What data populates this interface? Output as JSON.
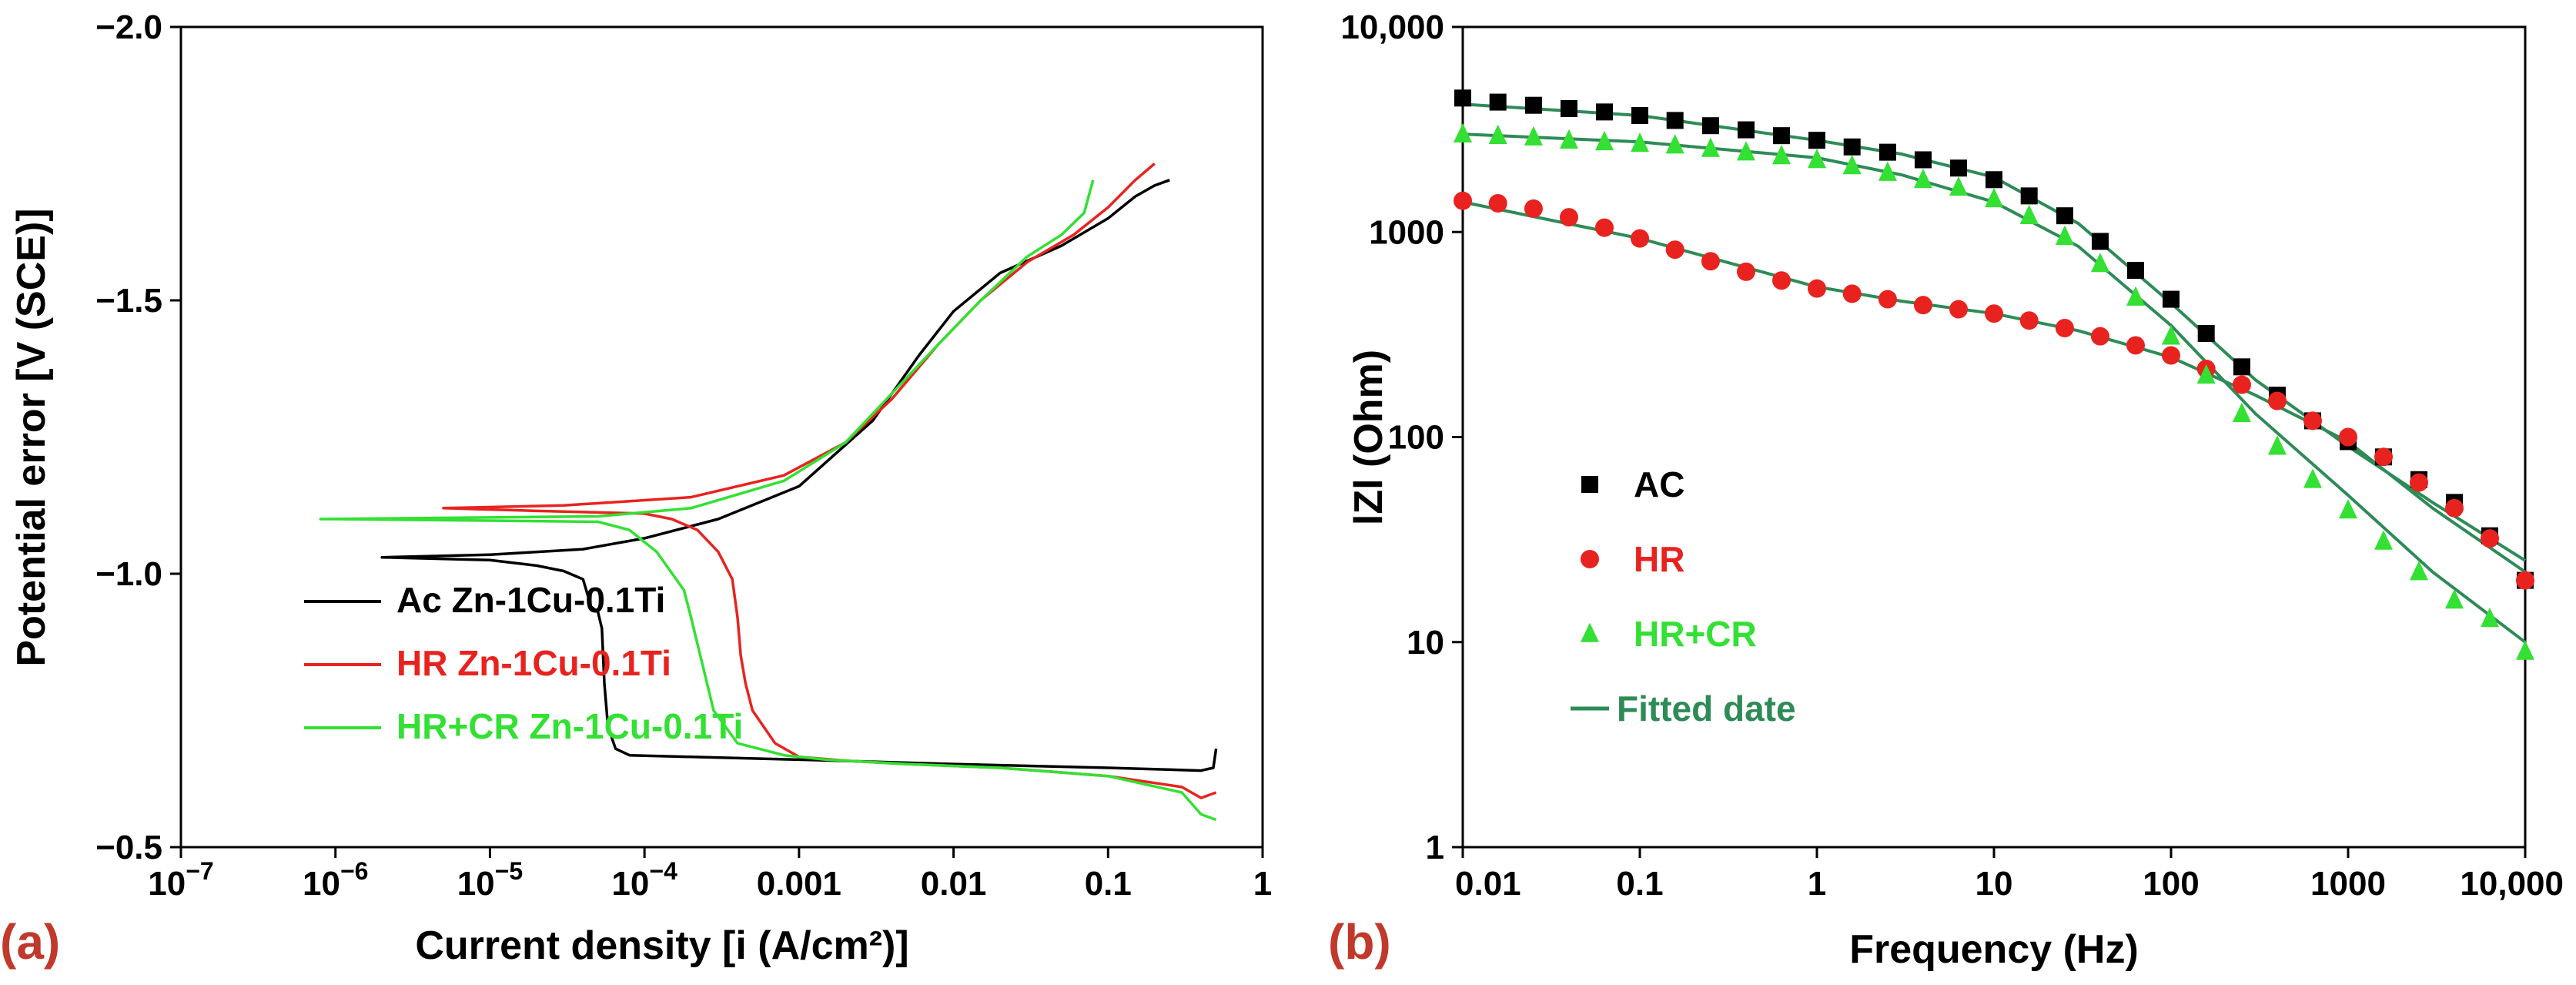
{
  "chart_data": [
    {
      "panel_label": "(a)",
      "type": "line",
      "xlabel": "Current density [i (A/cm²)]",
      "ylabel": "Potential error [V (SCE)]",
      "xscale": "log",
      "xlim": [
        1e-07,
        1
      ],
      "ylim": [
        -2.0,
        -0.5
      ],
      "xticks": [
        {
          "value": 1e-07,
          "base": "10",
          "exp": "−7"
        },
        {
          "value": 1e-06,
          "base": "10",
          "exp": "−6"
        },
        {
          "value": 1e-05,
          "base": "10",
          "exp": "−5"
        },
        {
          "value": 0.0001,
          "base": "10",
          "exp": "−4"
        },
        {
          "value": 0.001,
          "text": "0.001"
        },
        {
          "value": 0.01,
          "text": "0.01"
        },
        {
          "value": 0.1,
          "text": "0.1"
        },
        {
          "value": 1,
          "text": "1"
        }
      ],
      "yticks": [
        {
          "value": -0.5,
          "text": "−0.5"
        },
        {
          "value": -1.0,
          "text": "−1.0"
        },
        {
          "value": -1.5,
          "text": "−1.5"
        },
        {
          "value": -2.0,
          "text": "−2.0"
        }
      ],
      "grid": false,
      "legend_position": "bottom-left",
      "series": [
        {
          "name": "Ac Zn-1Cu-0.1Ti",
          "color": "#000000",
          "points": [
            [
              0.5,
              -0.68
            ],
            [
              0.48,
              -0.645
            ],
            [
              0.4,
              -0.64
            ],
            [
              0.1,
              -0.645
            ],
            [
              0.01,
              -0.652
            ],
            [
              0.001,
              -0.66
            ],
            [
              0.0002,
              -0.665
            ],
            [
              8e-05,
              -0.668
            ],
            [
              6.5e-05,
              -0.68
            ],
            [
              5.8e-05,
              -0.72
            ],
            [
              5.5e-05,
              -0.8
            ],
            [
              5.3e-05,
              -0.9
            ],
            [
              5e-05,
              -0.93
            ],
            [
              4.5e-05,
              -0.94
            ],
            [
              4.3e-05,
              -0.96
            ],
            [
              4e-05,
              -0.99
            ],
            [
              3e-05,
              -1.005
            ],
            [
              2e-05,
              -1.015
            ],
            [
              1e-05,
              -1.025
            ],
            [
              2e-06,
              -1.03
            ],
            [
              1e-05,
              -1.035
            ],
            [
              4e-05,
              -1.045
            ],
            [
              0.0001,
              -1.065
            ],
            [
              0.0003,
              -1.1
            ],
            [
              0.001,
              -1.16
            ],
            [
              0.003,
              -1.28
            ],
            [
              0.006,
              -1.4
            ],
            [
              0.01,
              -1.48
            ],
            [
              0.02,
              -1.55
            ],
            [
              0.05,
              -1.6
            ],
            [
              0.1,
              -1.65
            ],
            [
              0.15,
              -1.69
            ],
            [
              0.2,
              -1.71
            ],
            [
              0.25,
              -1.72
            ]
          ]
        },
        {
          "name": "HR Zn-1Cu-0.1Ti",
          "color": "#e8231f",
          "points": [
            [
              0.5,
              -0.6
            ],
            [
              0.4,
              -0.59
            ],
            [
              0.3,
              -0.61
            ],
            [
              0.1,
              -0.63
            ],
            [
              0.02,
              -0.645
            ],
            [
              0.005,
              -0.652
            ],
            [
              0.002,
              -0.658
            ],
            [
              0.001,
              -0.665
            ],
            [
              0.0007,
              -0.69
            ],
            [
              0.0005,
              -0.75
            ],
            [
              0.00045,
              -0.8
            ],
            [
              0.00042,
              -0.85
            ],
            [
              0.0004,
              -0.92
            ],
            [
              0.00037,
              -0.99
            ],
            [
              0.0003,
              -1.04
            ],
            [
              0.00022,
              -1.08
            ],
            [
              0.00015,
              -1.1
            ],
            [
              0.0001,
              -1.11
            ],
            [
              2e-05,
              -1.115
            ],
            [
              5e-06,
              -1.12
            ],
            [
              3e-05,
              -1.125
            ],
            [
              0.0002,
              -1.14
            ],
            [
              0.0008,
              -1.18
            ],
            [
              0.002,
              -1.24
            ],
            [
              0.004,
              -1.32
            ],
            [
              0.008,
              -1.42
            ],
            [
              0.015,
              -1.5
            ],
            [
              0.03,
              -1.57
            ],
            [
              0.06,
              -1.62
            ],
            [
              0.1,
              -1.67
            ],
            [
              0.15,
              -1.72
            ],
            [
              0.2,
              -1.75
            ]
          ]
        },
        {
          "name": "HR+CR Zn-1Cu-0.1Ti",
          "color": "#33e033",
          "points": [
            [
              0.5,
              -0.55
            ],
            [
              0.4,
              -0.56
            ],
            [
              0.3,
              -0.6
            ],
            [
              0.1,
              -0.63
            ],
            [
              0.02,
              -0.645
            ],
            [
              0.005,
              -0.652
            ],
            [
              0.0015,
              -0.66
            ],
            [
              0.0008,
              -0.668
            ],
            [
              0.0004,
              -0.69
            ],
            [
              0.00028,
              -0.75
            ],
            [
              0.00023,
              -0.85
            ],
            [
              0.0002,
              -0.92
            ],
            [
              0.00018,
              -0.97
            ],
            [
              0.00012,
              -1.04
            ],
            [
              8e-05,
              -1.08
            ],
            [
              5e-05,
              -1.095
            ],
            [
              1e-06,
              -1.1
            ],
            [
              8e-07,
              -1.1
            ],
            [
              5e-05,
              -1.105
            ],
            [
              0.0002,
              -1.12
            ],
            [
              0.0008,
              -1.17
            ],
            [
              0.002,
              -1.24
            ],
            [
              0.004,
              -1.33
            ],
            [
              0.008,
              -1.42
            ],
            [
              0.015,
              -1.5
            ],
            [
              0.03,
              -1.58
            ],
            [
              0.05,
              -1.62
            ],
            [
              0.07,
              -1.66
            ],
            [
              0.08,
              -1.72
            ]
          ]
        }
      ]
    },
    {
      "panel_label": "(b)",
      "type": "scatter",
      "xlabel": "Frequency (Hz)",
      "ylabel": "lZl (Ohm)",
      "xscale": "log",
      "yscale": "log",
      "xlim": [
        0.01,
        10000
      ],
      "ylim": [
        1,
        10000
      ],
      "xticks": [
        {
          "value": 0.01,
          "text": "0.01"
        },
        {
          "value": 0.1,
          "text": "0.1"
        },
        {
          "value": 1,
          "text": "1"
        },
        {
          "value": 10,
          "text": "10"
        },
        {
          "value": 100,
          "text": "100"
        },
        {
          "value": 1000,
          "text": "1000"
        },
        {
          "value": 10000,
          "text": "10,000"
        }
      ],
      "yticks": [
        {
          "value": 1,
          "text": "1"
        },
        {
          "value": 10,
          "text": "10"
        },
        {
          "value": 100,
          "text": "100"
        },
        {
          "value": 1000,
          "text": "1000"
        },
        {
          "value": 10000,
          "text": "10,000"
        }
      ],
      "grid": false,
      "legend_position": "left-center",
      "series": [
        {
          "name": "AC",
          "marker": "square",
          "color": "#000000",
          "x": [
            0.01,
            0.0158,
            0.0251,
            0.0398,
            0.0631,
            0.1,
            0.158,
            0.251,
            0.398,
            0.631,
            1,
            1.58,
            2.51,
            3.98,
            6.31,
            10,
            15.8,
            25.1,
            39.8,
            63.1,
            100,
            158,
            251,
            398,
            631,
            1000,
            1585,
            2512,
            3981,
            6310,
            10000
          ],
          "y": [
            4500,
            4300,
            4150,
            4000,
            3850,
            3700,
            3500,
            3300,
            3150,
            2950,
            2800,
            2600,
            2450,
            2250,
            2050,
            1800,
            1500,
            1200,
            900,
            650,
            470,
            320,
            220,
            160,
            120,
            95,
            80,
            62,
            48,
            33,
            20
          ]
        },
        {
          "name": "HR",
          "marker": "circle",
          "color": "#e8231f",
          "x": [
            0.01,
            0.0158,
            0.0251,
            0.0398,
            0.0631,
            0.1,
            0.158,
            0.251,
            0.398,
            0.631,
            1,
            1.58,
            2.51,
            3.98,
            6.31,
            10,
            15.8,
            25.1,
            39.8,
            63.1,
            100,
            158,
            251,
            398,
            631,
            1000,
            1585,
            2512,
            3981,
            6310,
            10000
          ],
          "y": [
            1420,
            1380,
            1300,
            1180,
            1050,
            930,
            820,
            720,
            640,
            580,
            530,
            500,
            470,
            440,
            420,
            400,
            370,
            340,
            310,
            280,
            250,
            215,
            180,
            150,
            120,
            100,
            80,
            60,
            45,
            32,
            20
          ]
        },
        {
          "name": "HR+CR",
          "marker": "triangle",
          "color": "#33e033",
          "x": [
            0.01,
            0.0158,
            0.0251,
            0.0398,
            0.0631,
            0.1,
            0.158,
            0.251,
            0.398,
            0.631,
            1,
            1.58,
            2.51,
            3.98,
            6.31,
            10,
            15.8,
            25.1,
            39.8,
            63.1,
            100,
            158,
            251,
            398,
            631,
            1000,
            1585,
            2512,
            3981,
            6310,
            10000
          ],
          "y": [
            3000,
            2950,
            2900,
            2800,
            2750,
            2700,
            2650,
            2550,
            2450,
            2350,
            2250,
            2100,
            1950,
            1800,
            1650,
            1450,
            1200,
            950,
            700,
            480,
            310,
            200,
            130,
            90,
            62,
            44,
            31,
            22,
            16,
            13,
            9
          ]
        },
        {
          "name": "Fitted date",
          "type": "line",
          "color": "#2e8b57",
          "fits": [
            {
              "x": [
                0.01,
                0.1,
                1,
                3,
                10,
                30,
                100,
                300,
                1000,
                3000,
                10000
              ],
              "y": [
                4200,
                3700,
                2800,
                2400,
                1850,
                1100,
                450,
                190,
                90,
                48,
                25
              ]
            },
            {
              "x": [
                0.01,
                0.1,
                1,
                3,
                10,
                30,
                100,
                300,
                1000,
                3000,
                10000
              ],
              "y": [
                1400,
                930,
                540,
                460,
                400,
                330,
                245,
                160,
                95,
                45,
                22
              ]
            },
            {
              "x": [
                0.01,
                0.1,
                1,
                3,
                10,
                30,
                100,
                300,
                1000,
                3000,
                10000
              ],
              "y": [
                3000,
                2750,
                2300,
                1900,
                1400,
                850,
                350,
                130,
                52,
                22,
                10
              ]
            }
          ]
        }
      ]
    }
  ]
}
